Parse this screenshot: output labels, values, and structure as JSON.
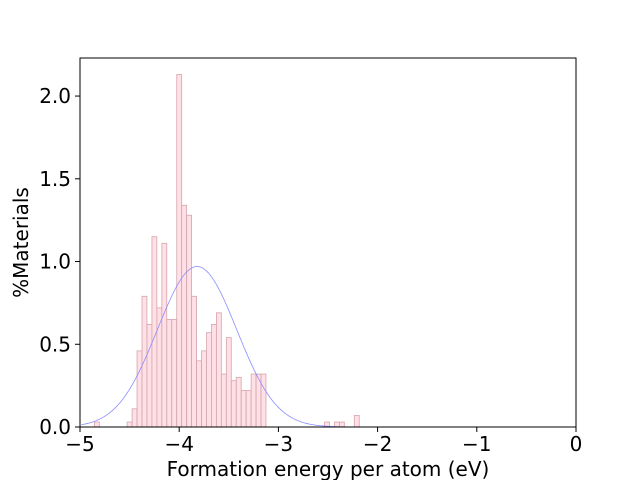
{
  "chart_data": {
    "type": "bar",
    "subtype": "histogram_with_normal_fit",
    "title": "",
    "xlabel": "Formation energy per atom (eV)",
    "ylabel": "%Materials",
    "xlim": [
      -5,
      0
    ],
    "ylim": [
      0,
      2.23
    ],
    "grid": false,
    "xticks": [
      -5,
      -4,
      -3,
      -2,
      -1,
      0
    ],
    "xtick_labels": [
      "−5",
      "−4",
      "−3",
      "−2",
      "−1",
      "0"
    ],
    "yticks": [
      0.0,
      0.5,
      1.0,
      1.5,
      2.0
    ],
    "ytick_labels": [
      "0.0",
      "0.5",
      "1.0",
      "1.5",
      "2.0"
    ],
    "bin_width": 0.0495,
    "bins": [
      {
        "x": -4.83,
        "value": 0.03
      },
      {
        "x": -4.5,
        "value": 0.03
      },
      {
        "x": -4.45,
        "value": 0.11
      },
      {
        "x": -4.4,
        "value": 0.46
      },
      {
        "x": -4.35,
        "value": 0.79
      },
      {
        "x": -4.3,
        "value": 0.62
      },
      {
        "x": -4.25,
        "value": 1.15
      },
      {
        "x": -4.2,
        "value": 0.72
      },
      {
        "x": -4.15,
        "value": 1.11
      },
      {
        "x": -4.1,
        "value": 0.65
      },
      {
        "x": -4.05,
        "value": 0.65
      },
      {
        "x": -4.0,
        "value": 2.13
      },
      {
        "x": -3.95,
        "value": 1.34
      },
      {
        "x": -3.9,
        "value": 1.28
      },
      {
        "x": -3.85,
        "value": 0.79
      },
      {
        "x": -3.8,
        "value": 0.4
      },
      {
        "x": -3.75,
        "value": 0.46
      },
      {
        "x": -3.7,
        "value": 0.57
      },
      {
        "x": -3.65,
        "value": 0.62
      },
      {
        "x": -3.6,
        "value": 0.69
      },
      {
        "x": -3.55,
        "value": 0.32
      },
      {
        "x": -3.5,
        "value": 0.54
      },
      {
        "x": -3.45,
        "value": 0.28
      },
      {
        "x": -3.4,
        "value": 0.3
      },
      {
        "x": -3.35,
        "value": 0.22
      },
      {
        "x": -3.3,
        "value": 0.22
      },
      {
        "x": -3.25,
        "value": 0.32
      },
      {
        "x": -3.2,
        "value": 0.32
      },
      {
        "x": -3.15,
        "value": 0.32
      },
      {
        "x": -2.51,
        "value": 0.03
      },
      {
        "x": -2.41,
        "value": 0.03
      },
      {
        "x": -2.36,
        "value": 0.03
      },
      {
        "x": -2.21,
        "value": 0.07
      }
    ],
    "fit": {
      "type": "normal",
      "mean": -3.82,
      "std": 0.4,
      "peak": 0.97
    },
    "colors": {
      "bar_fill": "#ffe0e6",
      "bar_edge": "#d4a5ad",
      "fit_line": "#8c8cff"
    }
  }
}
